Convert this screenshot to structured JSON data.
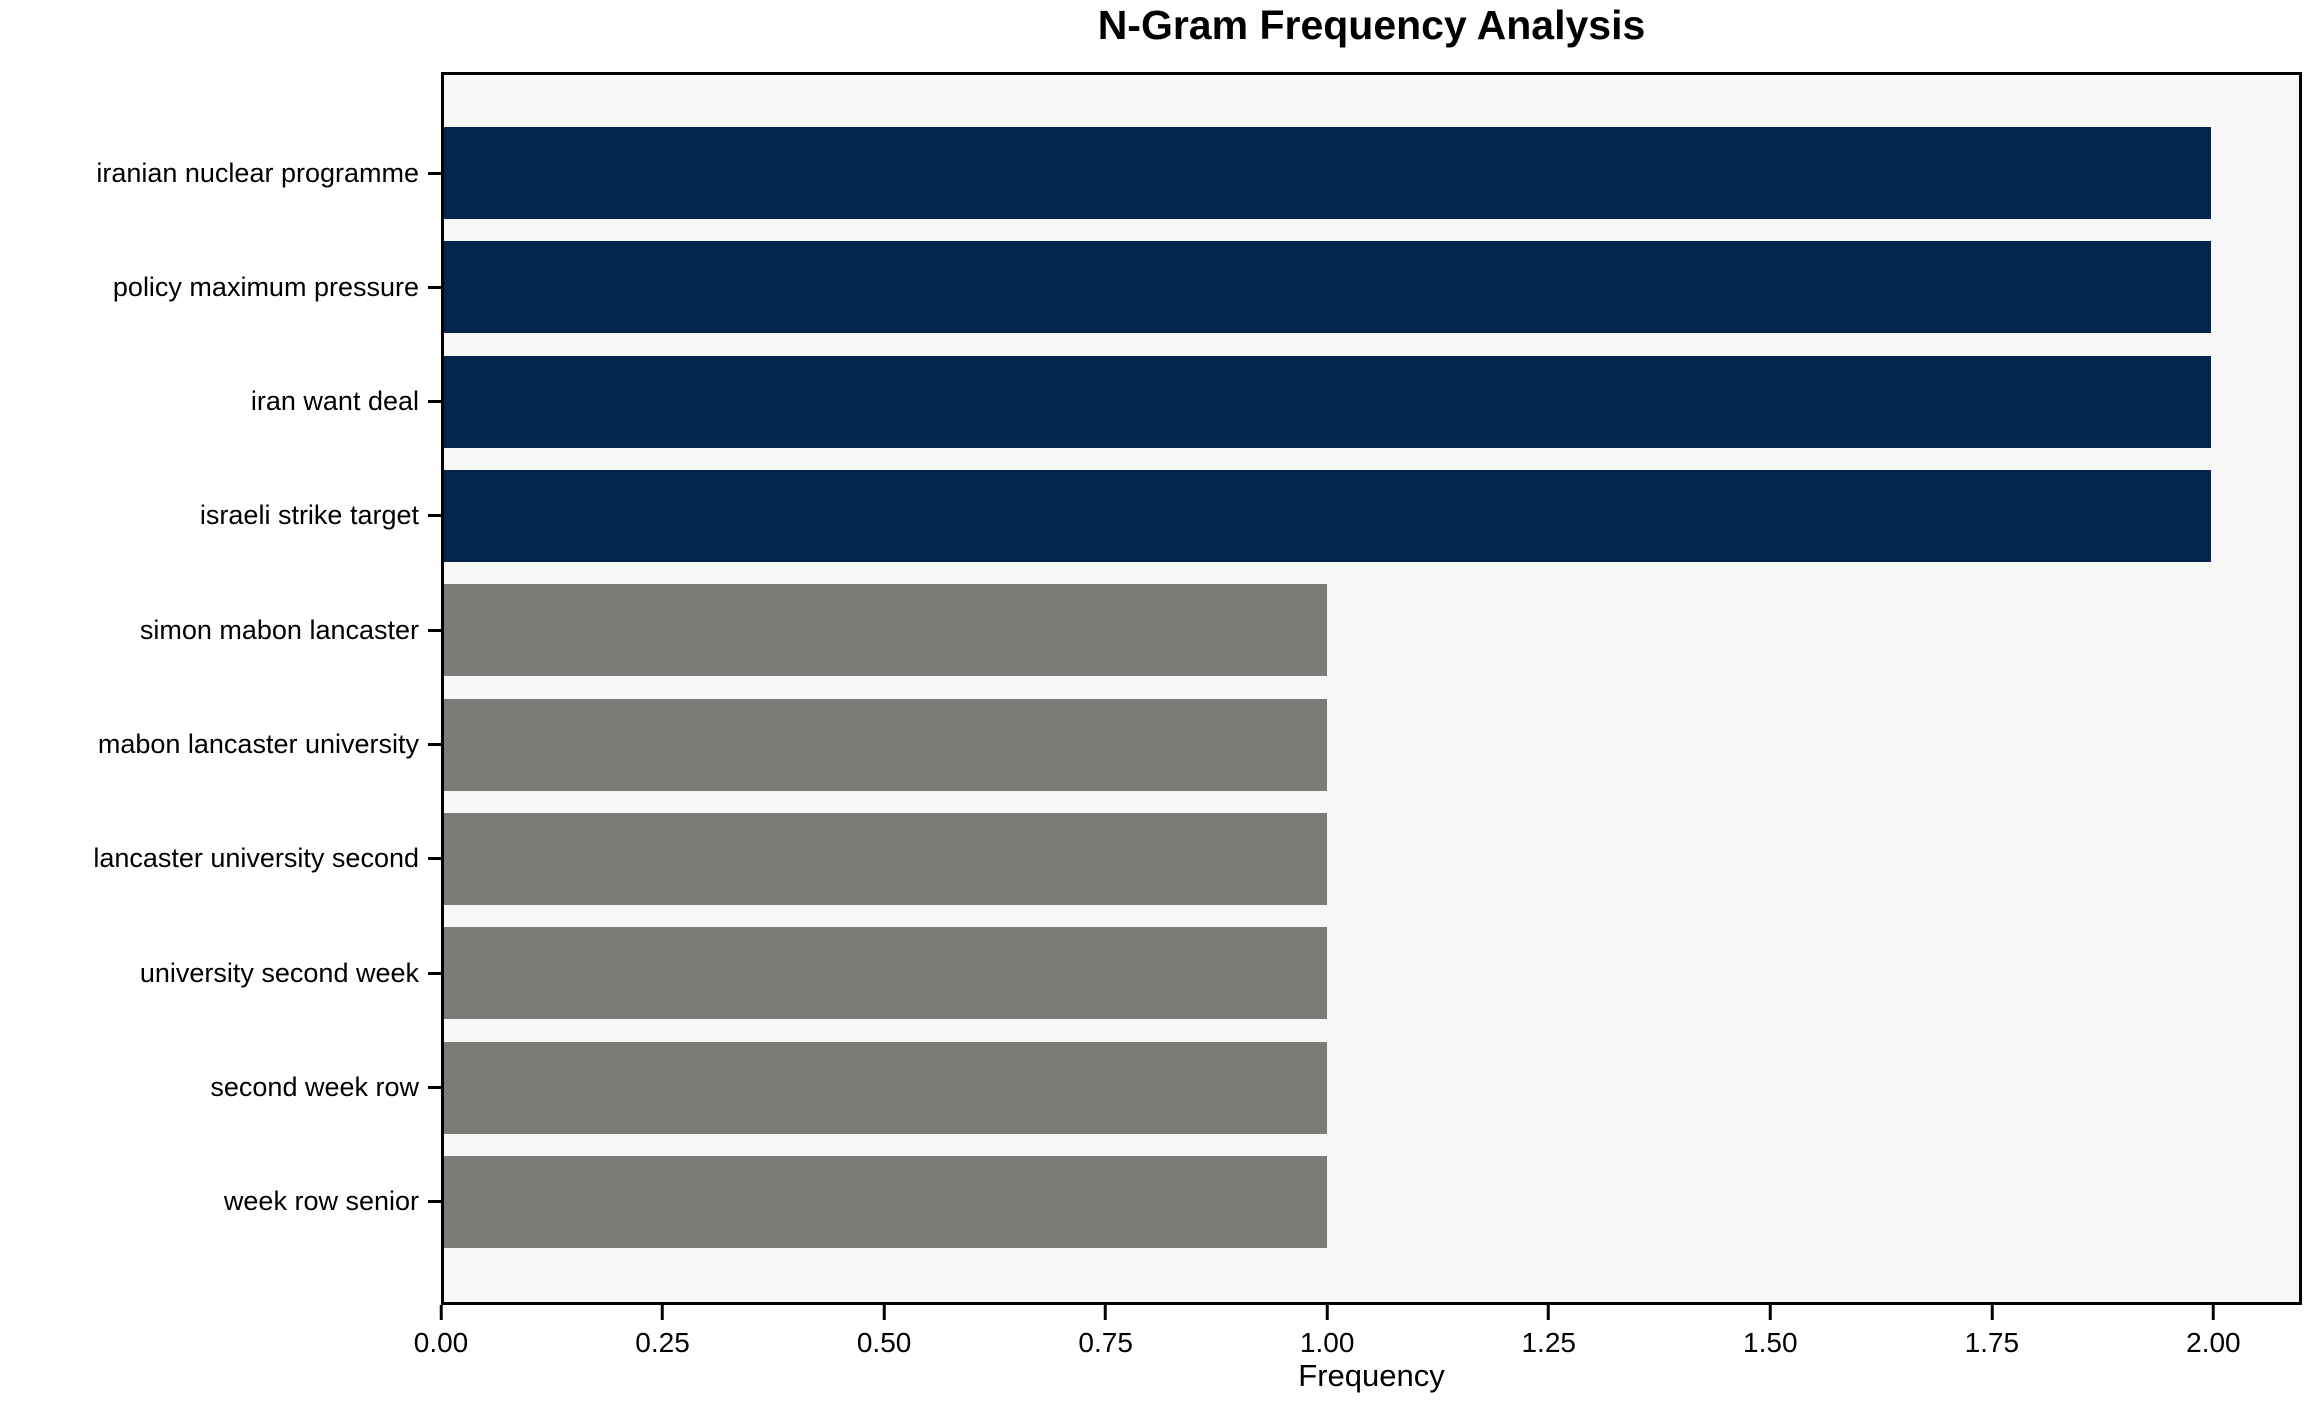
{
  "chart_data": {
    "type": "bar",
    "orientation": "horizontal",
    "title": "N-Gram Frequency Analysis",
    "xlabel": "Frequency",
    "ylabel": "",
    "categories": [
      "iranian nuclear programme",
      "policy maximum pressure",
      "iran want deal",
      "israeli strike target",
      "simon mabon lancaster",
      "mabon lancaster university",
      "lancaster university second",
      "university second week",
      "second week row",
      "week row senior"
    ],
    "values": [
      2,
      2,
      2,
      2,
      1,
      1,
      1,
      1,
      1,
      1
    ],
    "bar_colors": [
      "#03254e",
      "#03254e",
      "#03254e",
      "#03254e",
      "#7b7b77",
      "#7b7b77",
      "#7b7b77",
      "#7b7b77",
      "#7b7b77",
      "#7b7b77"
    ],
    "xlim": [
      0,
      2.1
    ],
    "x_ticks": [
      0,
      0.25,
      0.5,
      0.75,
      1.0,
      1.25,
      1.5,
      1.75,
      2.0
    ],
    "x_tick_labels": [
      "0.00",
      "0.25",
      "0.50",
      "0.75",
      "1.00",
      "1.25",
      "1.50",
      "1.75",
      "2.00"
    ],
    "grid": false,
    "legend": "none",
    "colors": {
      "highlight_bar": "#03254e",
      "default_bar": "#7b7b77",
      "plot_background": "#f7f7f7",
      "figure_background": "#ffffff",
      "spine": "#000000",
      "text": "#000000"
    }
  }
}
